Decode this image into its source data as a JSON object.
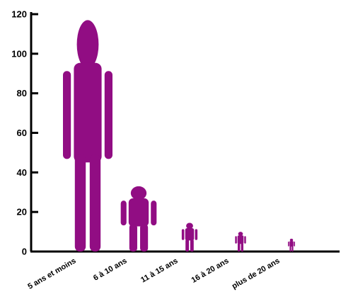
{
  "chart_data": {
    "type": "bar",
    "mark_style": "person-silhouette",
    "color": "#910d83",
    "categories": [
      "5 ans et moins",
      "6 à 10 ans",
      "11 à 15 ans",
      "16 à 20 ans",
      "plus de 20 ans"
    ],
    "values": [
      117,
      33,
      14.5,
      10,
      6.5
    ],
    "yticks": [
      0,
      20,
      40,
      60,
      80,
      100,
      120
    ],
    "ylim": [
      0,
      120
    ],
    "grid": false,
    "legend": "none"
  }
}
